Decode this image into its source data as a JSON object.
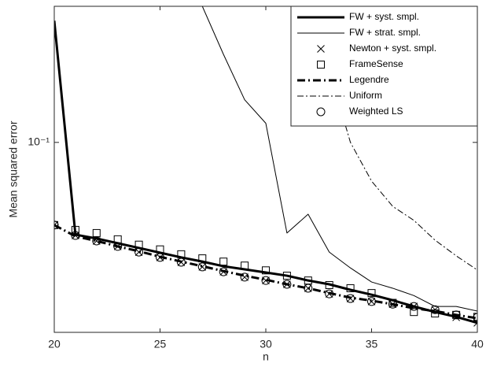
{
  "chart_data": {
    "type": "line",
    "xlabel": "n",
    "ylabel": "Mean squared error",
    "x": [
      20,
      21,
      22,
      23,
      24,
      25,
      26,
      27,
      28,
      29,
      30,
      31,
      32,
      33,
      34,
      35,
      36,
      37,
      38,
      39,
      40
    ],
    "xlim": [
      20,
      40
    ],
    "xticks": [
      20,
      25,
      30,
      35,
      40
    ],
    "ylim": [
      0.025,
      0.27
    ],
    "yscale": "log",
    "yticks": [
      {
        "value": 0.1,
        "label": "10⁻¹"
      }
    ],
    "legend_loc": "northeast",
    "series": [
      {
        "name": "FW + syst. smpl.",
        "color": "#000000",
        "line_style": "solid",
        "line_width": 3,
        "marker": "none",
        "values": [
          0.243,
          0.051,
          0.0496,
          0.0479,
          0.0463,
          0.0447,
          0.0432,
          0.0419,
          0.0405,
          0.0396,
          0.0387,
          0.0378,
          0.0365,
          0.0355,
          0.0341,
          0.0329,
          0.0316,
          0.0302,
          0.029,
          0.028,
          0.0268
        ]
      },
      {
        "name": "FW + strat. smpl.",
        "color": "#000000",
        "line_style": "solid",
        "line_width": 1,
        "marker": "none",
        "values": [
          null,
          null,
          null,
          null,
          null,
          null,
          0.33,
          0.27,
          0.19,
          0.1365,
          0.115,
          0.0516,
          0.0592,
          0.0449,
          0.04,
          0.0361,
          0.0345,
          0.0327,
          0.0302,
          0.0302,
          0.0292
        ]
      },
      {
        "name": "Newton + syst. smpl.",
        "color": "#000000",
        "line_style": "none",
        "line_width": 1,
        "marker": "x",
        "values": [
          0.0547,
          0.0507,
          0.0487,
          0.0468,
          0.0449,
          0.0432,
          0.0417,
          0.0403,
          0.0389,
          0.0374,
          0.0365,
          0.0355,
          0.0345,
          0.0331,
          0.032,
          0.0313,
          0.0307,
          0.0302,
          0.0295,
          0.0279,
          0.0268
        ]
      },
      {
        "name": "FrameSense",
        "color": "#000000",
        "line_style": "none",
        "line_width": 1,
        "marker": "square",
        "values": [
          0.0547,
          0.0528,
          0.0516,
          0.0493,
          0.0474,
          0.0458,
          0.0442,
          0.0429,
          0.0419,
          0.0407,
          0.0393,
          0.0378,
          0.0365,
          0.0353,
          0.0345,
          0.0333,
          0.031,
          0.029,
          0.0287,
          0.0284,
          0.028
        ]
      },
      {
        "name": "Legendre",
        "color": "#000000",
        "line_style": "dashdot",
        "line_width": 3,
        "marker": "none",
        "values": [
          0.0547,
          0.0504,
          0.0487,
          0.0468,
          0.0452,
          0.0434,
          0.0419,
          0.0405,
          0.0391,
          0.0378,
          0.0367,
          0.0355,
          0.0345,
          0.0333,
          0.0322,
          0.0315,
          0.0307,
          0.0298,
          0.0292,
          0.0284,
          0.0277
        ]
      },
      {
        "name": "Uniform",
        "color": "#000000",
        "line_style": "dashdot",
        "line_width": 1,
        "marker": "none",
        "values": [
          null,
          null,
          null,
          null,
          null,
          null,
          null,
          null,
          null,
          null,
          null,
          null,
          0.3,
          0.169,
          0.1,
          0.0754,
          0.0627,
          0.0566,
          0.049,
          0.0437,
          0.0394
        ]
      },
      {
        "name": "Weighted LS",
        "color": "#000000",
        "line_style": "none",
        "line_width": 1,
        "marker": "circle",
        "values": [
          0.0547,
          0.0507,
          0.0487,
          0.0468,
          0.0449,
          0.0432,
          0.0417,
          0.0403,
          0.0389,
          0.0374,
          0.0365,
          0.0355,
          0.0345,
          0.0331,
          0.032,
          0.0313,
          0.0307,
          0.0302,
          0.0295,
          0.0284,
          0.0279
        ]
      }
    ]
  }
}
